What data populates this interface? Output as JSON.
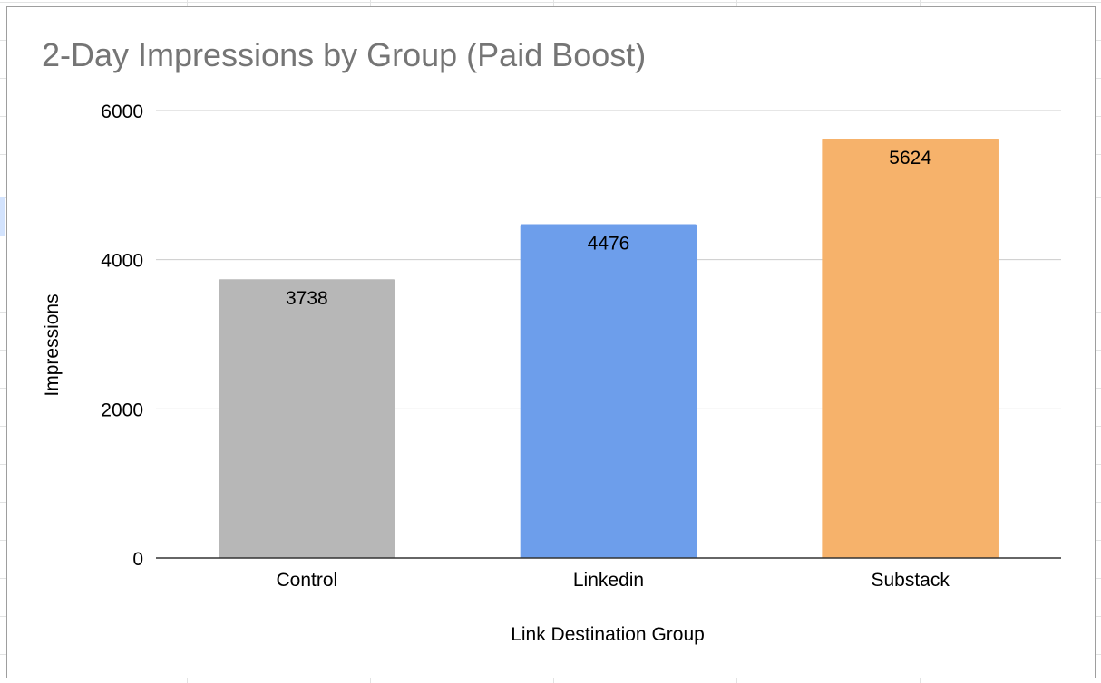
{
  "chart_data": {
    "type": "bar",
    "title": "2-Day Impressions by Group (Paid Boost)",
    "xlabel": "Link Destination Group",
    "ylabel": "Impressions",
    "categories": [
      "Control",
      "Linkedin",
      "Substack"
    ],
    "values": [
      3738,
      4476,
      5624
    ],
    "data_labels": [
      "3738",
      "4476",
      "5624"
    ],
    "bar_colors": [
      "#b7b7b7",
      "#6d9eeb",
      "#f6b26b"
    ],
    "ylim": [
      0,
      6000
    ],
    "yticks": [
      0,
      2000,
      4000,
      6000
    ],
    "ytick_labels": [
      "0",
      "2000",
      "4000",
      "6000"
    ],
    "grid": true,
    "legend": "none"
  },
  "colors": {
    "title": "#757575",
    "gridline": "#cccccc",
    "axis": "#333333",
    "sheet_gridline": "#e2e3e3"
  }
}
